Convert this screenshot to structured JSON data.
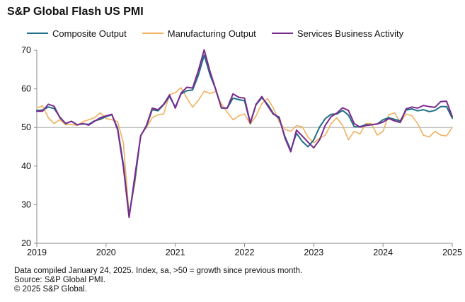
{
  "title": "S&P Global Flash US PMI",
  "footer": {
    "line1": "Data compiled January 24, 2025. Index, sa, >50 = growth since previous month.",
    "line2": "Source: S&P Global PMI.",
    "line3": "© 2025 S&P Global."
  },
  "colors": {
    "composite": "#1f6f86",
    "manufacturing": "#f0b15e",
    "services": "#7b2a8f",
    "axis": "#888888",
    "reference": "#aaaaaa"
  },
  "chart_data": {
    "type": "line",
    "title": "S&P Global Flash US PMI",
    "xlabel": "",
    "ylabel": "",
    "ylim": [
      20,
      70
    ],
    "y_ticks": [
      20,
      30,
      40,
      50,
      60,
      70
    ],
    "xlim": [
      2019,
      2025
    ],
    "x_ticks": [
      2019,
      2020,
      2021,
      2022,
      2023,
      2024,
      2025
    ],
    "reference_line": 50,
    "grid": false,
    "legend": "top",
    "series": [
      {
        "name": "Composite Output",
        "key": "composite",
        "x": [
          2019.0,
          2019.083,
          2019.167,
          2019.25,
          2019.333,
          2019.417,
          2019.5,
          2019.583,
          2019.667,
          2019.75,
          2019.833,
          2019.917,
          2020.0,
          2020.083,
          2020.167,
          2020.25,
          2020.333,
          2020.417,
          2020.5,
          2020.583,
          2020.667,
          2020.75,
          2020.833,
          2020.917,
          2021.0,
          2021.083,
          2021.167,
          2021.25,
          2021.333,
          2021.417,
          2021.5,
          2021.583,
          2021.667,
          2021.75,
          2021.833,
          2021.917,
          2022.0,
          2022.083,
          2022.167,
          2022.25,
          2022.333,
          2022.417,
          2022.5,
          2022.583,
          2022.667,
          2022.75,
          2022.833,
          2022.917,
          2023.0,
          2023.083,
          2023.167,
          2023.25,
          2023.333,
          2023.417,
          2023.5,
          2023.583,
          2023.667,
          2023.75,
          2023.833,
          2023.917,
          2024.0,
          2024.083,
          2024.167,
          2024.25,
          2024.333,
          2024.417,
          2024.5,
          2024.583,
          2024.667,
          2024.75,
          2024.833,
          2024.917,
          2025.0
        ],
        "values": [
          54.4,
          54.5,
          55.3,
          54.9,
          52.7,
          51.0,
          51.6,
          50.7,
          50.9,
          50.8,
          51.7,
          52.1,
          52.8,
          53.3,
          49.8,
          40.5,
          27.0,
          36.5,
          47.9,
          50.3,
          54.6,
          54.3,
          55.9,
          58.0,
          55.3,
          58.7,
          59.5,
          59.7,
          63.5,
          68.7,
          63.7,
          59.9,
          55.0,
          55.0,
          57.6,
          57.2,
          56.9,
          51.1,
          55.9,
          57.7,
          56.0,
          53.6,
          52.3,
          47.7,
          44.1,
          48.5,
          46.4,
          45.0,
          46.8,
          50.1,
          52.3,
          53.4,
          53.5,
          54.4,
          53.2,
          50.2,
          50.2,
          50.7,
          50.7,
          50.9,
          52.0,
          52.5,
          52.1,
          51.7,
          54.5,
          54.8,
          54.3,
          54.6,
          54.1,
          54.4,
          55.4,
          55.4,
          52.4
        ]
      },
      {
        "name": "Manufacturing Output",
        "key": "manufacturing",
        "x": [
          2019.0,
          2019.083,
          2019.167,
          2019.25,
          2019.333,
          2019.417,
          2019.5,
          2019.583,
          2019.667,
          2019.75,
          2019.833,
          2019.917,
          2020.0,
          2020.083,
          2020.167,
          2020.25,
          2020.333,
          2020.417,
          2020.5,
          2020.583,
          2020.667,
          2020.75,
          2020.833,
          2020.917,
          2021.0,
          2021.083,
          2021.167,
          2021.25,
          2021.333,
          2021.417,
          2021.5,
          2021.583,
          2021.667,
          2021.75,
          2021.833,
          2021.917,
          2022.0,
          2022.083,
          2022.167,
          2022.25,
          2022.333,
          2022.417,
          2022.5,
          2022.583,
          2022.667,
          2022.75,
          2022.833,
          2022.917,
          2023.0,
          2023.083,
          2023.167,
          2023.25,
          2023.333,
          2023.417,
          2023.5,
          2023.583,
          2023.667,
          2023.75,
          2023.833,
          2023.917,
          2024.0,
          2024.083,
          2024.167,
          2024.25,
          2024.333,
          2024.417,
          2024.5,
          2024.583,
          2024.667,
          2024.75,
          2024.833,
          2024.917,
          2025.0
        ],
        "values": [
          55.0,
          55.6,
          52.5,
          51.0,
          52.0,
          50.7,
          50.8,
          50.5,
          51.5,
          52.0,
          52.5,
          53.8,
          52.3,
          52.0,
          51.5,
          46.0,
          27.5,
          35.5,
          48.0,
          50.0,
          52.5,
          53.3,
          53.5,
          58.5,
          59.0,
          60.3,
          57.6,
          55.3,
          57.0,
          59.4,
          58.8,
          59.3,
          56.0,
          54.0,
          52.0,
          53.0,
          53.5,
          50.8,
          53.0,
          56.2,
          57.5,
          55.0,
          51.5,
          49.5,
          49.0,
          50.5,
          50.2,
          47.5,
          46.0,
          47.2,
          48.0,
          51.0,
          52.5,
          50.5,
          46.8,
          49.0,
          48.3,
          51.0,
          51.0,
          48.0,
          49.0,
          53.3,
          53.8,
          51.3,
          53.5,
          53.0,
          51.0,
          48.0,
          47.5,
          49.0,
          48.0,
          47.8,
          50.0
        ]
      },
      {
        "name": "Services Business Activity",
        "key": "services",
        "x": [
          2019.0,
          2019.083,
          2019.167,
          2019.25,
          2019.333,
          2019.417,
          2019.5,
          2019.583,
          2019.667,
          2019.75,
          2019.833,
          2019.917,
          2020.0,
          2020.083,
          2020.167,
          2020.25,
          2020.333,
          2020.417,
          2020.5,
          2020.583,
          2020.667,
          2020.75,
          2020.833,
          2020.917,
          2021.0,
          2021.083,
          2021.167,
          2021.25,
          2021.333,
          2021.417,
          2021.5,
          2021.583,
          2021.667,
          2021.75,
          2021.833,
          2021.917,
          2022.0,
          2022.083,
          2022.167,
          2022.25,
          2022.333,
          2022.417,
          2022.5,
          2022.583,
          2022.667,
          2022.75,
          2022.833,
          2022.917,
          2023.0,
          2023.083,
          2023.167,
          2023.25,
          2023.333,
          2023.417,
          2023.5,
          2023.583,
          2023.667,
          2023.75,
          2023.833,
          2023.917,
          2024.0,
          2024.083,
          2024.167,
          2024.25,
          2024.333,
          2024.417,
          2024.5,
          2024.583,
          2024.667,
          2024.75,
          2024.833,
          2024.917,
          2025.0
        ],
        "values": [
          54.2,
          54.2,
          56.0,
          55.5,
          52.5,
          51.0,
          51.6,
          50.7,
          51.0,
          50.6,
          51.6,
          52.5,
          53.0,
          53.4,
          49.4,
          39.8,
          26.7,
          37.5,
          47.8,
          50.5,
          55.0,
          54.6,
          56.0,
          58.4,
          55.0,
          58.9,
          60.4,
          60.2,
          64.7,
          70.1,
          64.6,
          59.9,
          55.1,
          55.0,
          58.7,
          57.8,
          57.6,
          51.2,
          56.0,
          58.0,
          55.6,
          53.4,
          52.7,
          47.3,
          43.7,
          49.3,
          47.8,
          46.2,
          44.7,
          46.8,
          50.6,
          52.8,
          53.7,
          55.1,
          54.4,
          51.0,
          50.1,
          50.5,
          50.7,
          50.9,
          51.4,
          52.3,
          51.7,
          51.3,
          54.8,
          55.3,
          55.0,
          55.7,
          55.4,
          55.2,
          56.7,
          56.8,
          52.8
        ]
      }
    ]
  }
}
